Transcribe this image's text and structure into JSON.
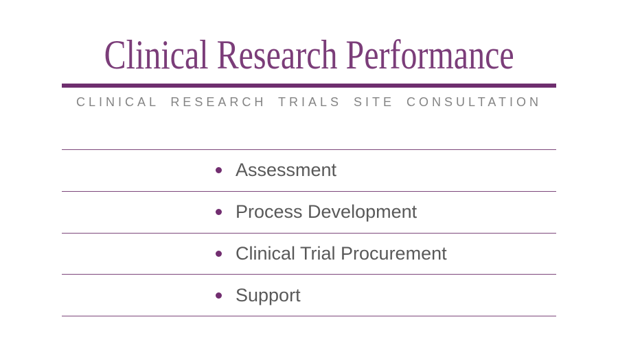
{
  "title": {
    "text": "Clinical Research Performance"
  },
  "subtitle": {
    "text": "CLINICAL RESEARCH TRIALS SITE CONSULTATION"
  },
  "list": {
    "items": [
      {
        "label": "Assessment"
      },
      {
        "label": "Process Development"
      },
      {
        "label": "Clinical Trial Procurement"
      },
      {
        "label": "Support"
      }
    ]
  },
  "theme": {
    "title_purple": "#7b3d79",
    "rule_purple": "#6e2e6e",
    "divider_purple": "#7c457a",
    "bullet_purple": "#722e70",
    "subtitle_gray": "#848484",
    "item_text_gray": "#595959",
    "background": "#ffffff"
  }
}
